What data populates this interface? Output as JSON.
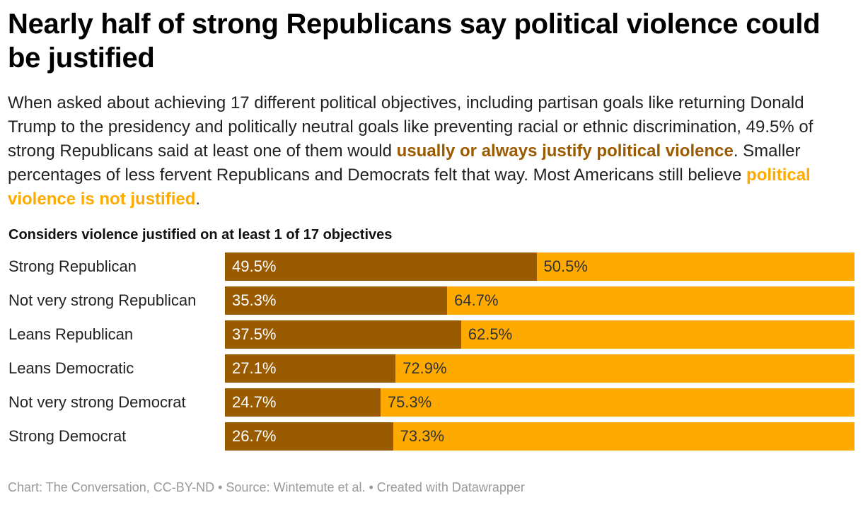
{
  "title": "Nearly half of strong Republicans say political violence could be justified",
  "subtitle": {
    "part1": "When asked about achieving 17 different political objectives, including partisan goals like returning Donald Trump to the presidency and politically neutral goals like preventing racial or ethnic discrimination, 49.5% of strong Republicans said at least one of them would ",
    "highlight1": "usually or always justify political violence",
    "part2": ". Smaller percentages of less fervent Republicans and Democrats felt that way. Most Americans still believe ",
    "highlight2": "political violence is not justified",
    "part3": "."
  },
  "footer": "Chart: The Conversation, CC-BY-ND • Source: Wintemute et al. • Created with Datawrapper",
  "colors": {
    "justified": "#9a5b00",
    "not_justified": "#ffaa00"
  },
  "chart_data": {
    "type": "bar",
    "orientation": "horizontal",
    "stacked": true,
    "title": "Considers violence justified on at least 1 of 17 objectives",
    "categories": [
      "Strong Republican",
      "Not very strong Republican",
      "Leans Republican",
      "Leans Democratic",
      "Not very strong Democrat",
      "Strong Democrat"
    ],
    "series": [
      {
        "values": [
          49.5,
          35.3,
          37.5,
          27.1,
          24.7,
          26.7
        ],
        "color": "#9a5b00"
      },
      {
        "values": [
          50.5,
          64.7,
          62.5,
          72.9,
          75.3,
          73.3
        ],
        "color": "#ffaa00"
      }
    ],
    "xlim": [
      0,
      100
    ],
    "value_suffix": "%",
    "grid": false
  }
}
